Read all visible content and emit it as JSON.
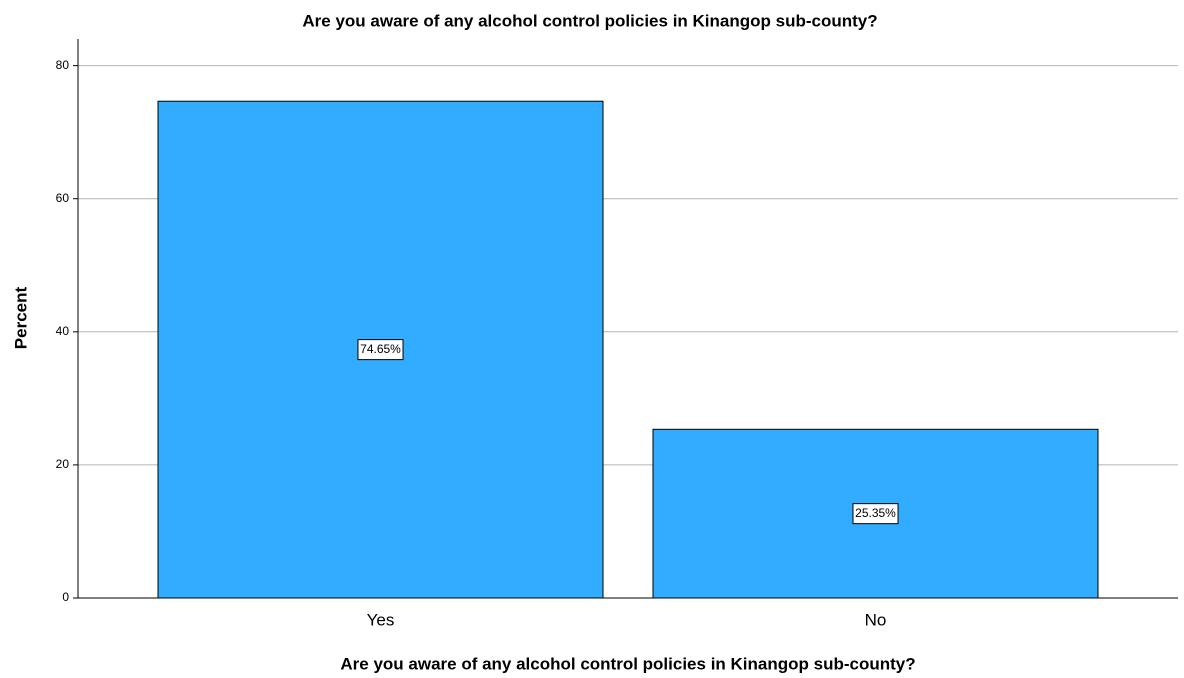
{
  "chart_data": {
    "type": "bar",
    "title": "Are you aware of any alcohol control policies in Kinangop sub-county?",
    "x_label": "Are you aware of any alcohol control policies in Kinangop sub-county?",
    "y_label": "Percent",
    "categories": [
      "Yes",
      "No"
    ],
    "values": [
      74.65,
      25.35
    ],
    "value_labels": [
      "74.65%",
      "25.35%"
    ],
    "color": "#31acff",
    "ylim": [
      0,
      84
    ],
    "yticks": [
      0,
      20,
      40,
      60,
      80
    ],
    "grid": true
  }
}
